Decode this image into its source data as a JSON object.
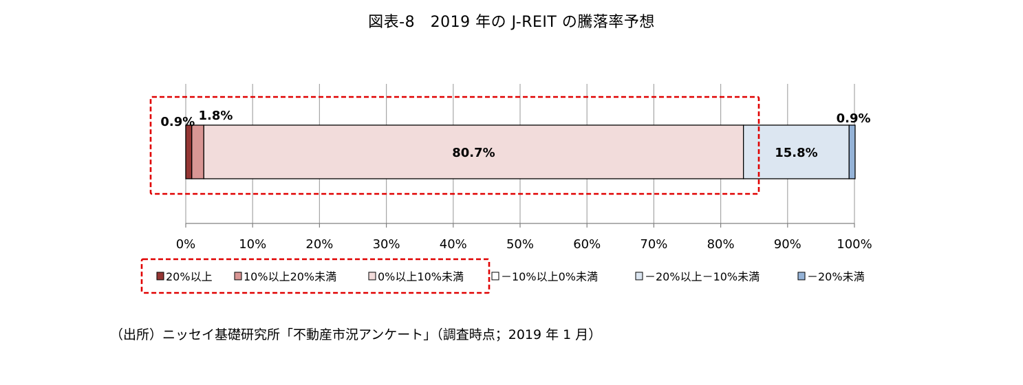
{
  "chart_data": {
    "type": "bar",
    "orientation": "horizontal",
    "stacked": true,
    "title": "図表-8　2019 年の J-REIT の騰落率予想",
    "xlim": [
      0,
      100
    ],
    "x_ticks": [
      "0%",
      "10%",
      "20%",
      "30%",
      "40%",
      "50%",
      "60%",
      "70%",
      "80%",
      "90%",
      "100%"
    ],
    "grid": true,
    "legend_position": "bottom",
    "series": [
      {
        "name": "20%以上",
        "value": 0.9,
        "label": "0.9%",
        "color": "#943634"
      },
      {
        "name": "10%以上20%未満",
        "value": 1.8,
        "label": "1.8%",
        "color": "#d99694"
      },
      {
        "name": "0%以上10%未満",
        "value": 80.7,
        "label": "80.7%",
        "color": "#f2dcdb"
      },
      {
        "name": "－10%以上0%未満",
        "value": 0.0,
        "label": "",
        "color": "#ffffff"
      },
      {
        "name": "－20%以上－10%未満",
        "value": 15.8,
        "label": "15.8%",
        "color": "#dce6f1"
      },
      {
        "name": "－20%未満",
        "value": 0.9,
        "label": "0.9%",
        "color": "#95b3d7"
      }
    ]
  },
  "source_note": "（出所）ニッセイ基礎研究所「不動産市況アンケート」（調査時点；2019 年 1 月）"
}
